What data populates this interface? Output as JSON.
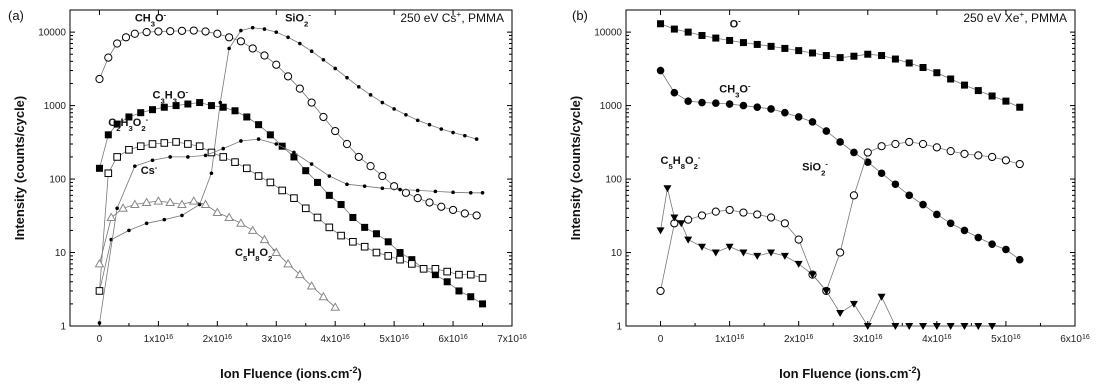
{
  "chart_data": [
    {
      "type": "scatter",
      "panel_label": "(a)",
      "condition_text": "250 eV Cs",
      "condition_sup": "+",
      "condition_suffix": ", PMMA",
      "xlabel": "Ion Fluence (ions.cm",
      "xlabel_sup": "-2",
      "xlabel_end": ")",
      "ylabel": "Intensity (counts/cycle)",
      "x_scale_exp": 16,
      "xlim": [
        -0.5,
        7
      ],
      "ylim": [
        1,
        20000
      ],
      "y_log": true,
      "x_ticks": [
        0,
        1,
        2,
        3,
        4,
        5,
        6,
        7
      ],
      "x_tick_labels": [
        "0",
        "1x10",
        "2x10",
        "3x10",
        "4x10",
        "5x10",
        "6x10",
        "7x10"
      ],
      "x_tick_sup": [
        "",
        "16",
        "16",
        "16",
        "16",
        "16",
        "16",
        "16"
      ],
      "y_ticks": [
        1,
        10,
        100,
        1000,
        10000
      ],
      "y_tick_labels": [
        "1",
        "10",
        "100",
        "1000",
        "10000"
      ],
      "series": [
        {
          "name": "CH3O-",
          "label_parts": [
            [
              "CH",
              ""
            ],
            [
              "3",
              "sub"
            ],
            [
              "O",
              ""
            ],
            [
              "-",
              "sup"
            ]
          ],
          "label_at": [
            0.6,
            14000
          ],
          "marker": "circle-open",
          "connect": true,
          "x": [
            0.0,
            0.15,
            0.3,
            0.45,
            0.6,
            0.8,
            1.0,
            1.2,
            1.4,
            1.6,
            1.8,
            2.0,
            2.2,
            2.4,
            2.6,
            2.8,
            3.0,
            3.2,
            3.4,
            3.6,
            3.8,
            4.0,
            4.2,
            4.4,
            4.6,
            4.8,
            5.0,
            5.2,
            5.4,
            5.6,
            5.8,
            6.0,
            6.2,
            6.4
          ],
          "y": [
            2300,
            4500,
            7000,
            8500,
            9500,
            10000,
            10200,
            10300,
            10400,
            10500,
            10200,
            9500,
            8500,
            7500,
            6000,
            4800,
            3600,
            2500,
            1700,
            1100,
            700,
            450,
            300,
            200,
            150,
            110,
            80,
            65,
            55,
            48,
            42,
            38,
            34,
            32
          ]
        },
        {
          "name": "SiO2-",
          "label_parts": [
            [
              "SiO",
              ""
            ],
            [
              "2",
              "sub"
            ],
            [
              "-",
              "sup"
            ]
          ],
          "label_at": [
            3.15,
            14000
          ],
          "marker": "small-dot",
          "connect": true,
          "x": [
            0.0,
            0.2,
            0.5,
            0.8,
            1.1,
            1.4,
            1.7,
            1.9,
            2.05,
            2.2,
            2.4,
            2.6,
            2.8,
            3.0,
            3.2,
            3.4,
            3.6,
            3.8,
            4.0,
            4.2,
            4.4,
            4.6,
            4.8,
            5.0,
            5.2,
            5.4,
            5.6,
            5.8,
            6.0,
            6.2,
            6.4
          ],
          "y": [
            3,
            15,
            20,
            25,
            28,
            32,
            45,
            120,
            1100,
            6000,
            10500,
            11500,
            11000,
            10000,
            8500,
            7000,
            5500,
            4200,
            3200,
            2400,
            1800,
            1400,
            1100,
            900,
            750,
            630,
            550,
            480,
            430,
            390,
            350
          ]
        },
        {
          "name": "C3H3O-",
          "label_parts": [
            [
              "C",
              ""
            ],
            [
              "3",
              "sub"
            ],
            [
              "H",
              ""
            ],
            [
              "3",
              "sub"
            ],
            [
              "O",
              ""
            ],
            [
              "-",
              "sup"
            ]
          ],
          "label_at": [
            0.9,
            1250
          ],
          "marker": "square-filled",
          "connect": true,
          "x": [
            0.0,
            0.15,
            0.3,
            0.5,
            0.7,
            0.9,
            1.1,
            1.3,
            1.5,
            1.7,
            1.9,
            2.1,
            2.3,
            2.5,
            2.7,
            2.9,
            3.1,
            3.3,
            3.5,
            3.7,
            3.9,
            4.1,
            4.3,
            4.5,
            4.7,
            4.9,
            5.1,
            5.3,
            5.5,
            5.7,
            5.9,
            6.1,
            6.3,
            6.5
          ],
          "y": [
            140,
            400,
            560,
            700,
            800,
            880,
            950,
            1000,
            1050,
            1100,
            1000,
            950,
            850,
            700,
            550,
            400,
            280,
            200,
            130,
            90,
            60,
            45,
            30,
            22,
            18,
            14,
            10,
            8,
            6,
            5,
            4,
            3,
            2.5,
            2
          ]
        },
        {
          "name": "C2H3O2-",
          "label_parts": [
            [
              "C",
              ""
            ],
            [
              "2",
              "sub"
            ],
            [
              "H",
              ""
            ],
            [
              "3",
              "sub"
            ],
            [
              "O",
              ""
            ],
            [
              "2",
              "sub"
            ],
            [
              "-",
              "sup"
            ]
          ],
          "label_at": [
            0.15,
            530
          ],
          "marker": "square-open",
          "connect": true,
          "x": [
            0.0,
            0.15,
            0.3,
            0.5,
            0.7,
            0.9,
            1.1,
            1.3,
            1.5,
            1.7,
            1.9,
            2.1,
            2.3,
            2.5,
            2.7,
            2.9,
            3.1,
            3.3,
            3.5,
            3.7,
            3.9,
            4.1,
            4.3,
            4.5,
            4.7,
            4.9,
            5.1,
            5.3,
            5.5,
            5.7,
            5.9,
            6.1,
            6.3,
            6.5
          ],
          "y": [
            3,
            120,
            200,
            250,
            280,
            300,
            310,
            320,
            300,
            280,
            230,
            200,
            170,
            140,
            110,
            90,
            70,
            55,
            40,
            30,
            22,
            17,
            14,
            12,
            10,
            9,
            8,
            7,
            6,
            6,
            5.5,
            5,
            5,
            4.5
          ]
        },
        {
          "name": "Cs-",
          "label_parts": [
            [
              "Cs",
              ""
            ],
            [
              "-",
              "sup"
            ]
          ],
          "label_at": [
            0.7,
            118
          ],
          "marker": "small-dot",
          "connect": true,
          "x": [
            0.0,
            0.3,
            0.6,
            0.9,
            1.2,
            1.5,
            1.8,
            2.1,
            2.4,
            2.7,
            3.0,
            3.3,
            3.6,
            3.9,
            4.2,
            4.5,
            4.8,
            5.1,
            5.4,
            5.7,
            6.0,
            6.3,
            6.5
          ],
          "y": [
            1.1,
            40,
            150,
            180,
            200,
            200,
            210,
            260,
            330,
            350,
            300,
            230,
            160,
            110,
            85,
            80,
            75,
            72,
            70,
            68,
            66,
            65,
            65
          ]
        },
        {
          "name": "C5H8O2-",
          "label_parts": [
            [
              "C",
              ""
            ],
            [
              "5",
              "sub"
            ],
            [
              "H",
              ""
            ],
            [
              "8",
              "sub"
            ],
            [
              "O",
              ""
            ],
            [
              "2",
              "sub"
            ],
            [
              "-",
              "sup"
            ]
          ],
          "label_at": [
            2.3,
            9
          ],
          "marker": "triangle-open",
          "connect": true,
          "x": [
            0.0,
            0.2,
            0.4,
            0.6,
            0.8,
            1.0,
            1.2,
            1.4,
            1.6,
            1.8,
            2.0,
            2.2,
            2.4,
            2.6,
            2.8,
            3.0,
            3.2,
            3.4,
            3.6,
            3.8,
            4.0
          ],
          "y": [
            7,
            30,
            40,
            45,
            48,
            50,
            48,
            45,
            50,
            45,
            35,
            30,
            25,
            20,
            15,
            10,
            7,
            5,
            3.5,
            2.5,
            1.8
          ]
        }
      ]
    },
    {
      "type": "scatter",
      "panel_label": "(b)",
      "condition_text": "250 eV Xe",
      "condition_sup": "+",
      "condition_suffix": ", PMMA",
      "xlabel": "Ion Fluence (ions.cm",
      "xlabel_sup": "-2",
      "xlabel_end": ")",
      "ylabel": "Intensity (counts/cycle)",
      "x_scale_exp": 16,
      "xlim": [
        -0.5,
        6
      ],
      "ylim": [
        1,
        20000
      ],
      "y_log": true,
      "x_ticks": [
        0,
        1,
        2,
        3,
        4,
        5,
        6
      ],
      "x_tick_labels": [
        "0",
        "1x10",
        "2x10",
        "3x10",
        "4x10",
        "5x10",
        "6x10"
      ],
      "x_tick_sup": [
        "",
        "16",
        "16",
        "16",
        "16",
        "16",
        "16"
      ],
      "y_ticks": [
        1,
        10,
        100,
        1000,
        10000
      ],
      "y_tick_labels": [
        "1",
        "10",
        "100",
        "1000",
        "10000"
      ],
      "series": [
        {
          "name": "O-",
          "label_parts": [
            [
              "O",
              ""
            ],
            [
              "-",
              "sup"
            ]
          ],
          "label_at": [
            1.0,
            11500
          ],
          "marker": "square-filled",
          "connect": true,
          "x": [
            0.0,
            0.2,
            0.4,
            0.6,
            0.8,
            1.0,
            1.2,
            1.4,
            1.6,
            1.8,
            2.0,
            2.2,
            2.4,
            2.6,
            2.8,
            3.0,
            3.2,
            3.4,
            3.6,
            3.8,
            4.0,
            4.2,
            4.4,
            4.6,
            4.8,
            5.0,
            5.2
          ],
          "y": [
            13000,
            11000,
            10000,
            9000,
            8300,
            7700,
            7200,
            6800,
            6400,
            6000,
            5600,
            5200,
            4800,
            4500,
            4700,
            5000,
            4800,
            4300,
            3800,
            3300,
            2800,
            2300,
            1900,
            1600,
            1350,
            1150,
            950
          ]
        },
        {
          "name": "CH3O-",
          "label_parts": [
            [
              "CH",
              ""
            ],
            [
              "3",
              "sub"
            ],
            [
              "O",
              ""
            ],
            [
              "-",
              "sup"
            ]
          ],
          "label_at": [
            0.85,
            1500
          ],
          "marker": "circle-filled",
          "connect": true,
          "x": [
            0.0,
            0.2,
            0.4,
            0.6,
            0.8,
            1.0,
            1.2,
            1.4,
            1.6,
            1.8,
            2.0,
            2.2,
            2.4,
            2.6,
            2.8,
            3.0,
            3.2,
            3.4,
            3.6,
            3.8,
            4.0,
            4.2,
            4.4,
            4.6,
            4.8,
            5.0,
            5.2
          ],
          "y": [
            3000,
            1500,
            1150,
            1100,
            1080,
            1050,
            1000,
            950,
            900,
            800,
            700,
            600,
            450,
            320,
            230,
            170,
            120,
            85,
            60,
            45,
            33,
            25,
            20,
            16,
            13,
            11,
            8
          ]
        },
        {
          "name": "SiO2-",
          "label_parts": [
            [
              "SiO",
              ""
            ],
            [
              "2",
              "sub"
            ],
            [
              "-",
              "sup"
            ]
          ],
          "label_at": [
            2.05,
            130
          ],
          "marker": "circle-open",
          "connect": true,
          "x": [
            0.0,
            0.2,
            0.4,
            0.6,
            0.8,
            1.0,
            1.2,
            1.4,
            1.6,
            1.8,
            2.0,
            2.2,
            2.4,
            2.6,
            2.8,
            3.0,
            3.2,
            3.4,
            3.6,
            3.8,
            4.0,
            4.2,
            4.4,
            4.6,
            4.8,
            5.0,
            5.2
          ],
          "y": [
            3,
            25,
            28,
            32,
            36,
            38,
            35,
            33,
            30,
            25,
            15,
            5,
            3,
            10,
            60,
            230,
            280,
            300,
            320,
            300,
            270,
            240,
            220,
            210,
            200,
            180,
            160
          ]
        },
        {
          "name": "C5H8O2-",
          "label_parts": [
            [
              "C",
              ""
            ],
            [
              "5",
              "sub"
            ],
            [
              "H",
              ""
            ],
            [
              "8",
              "sub"
            ],
            [
              "O",
              ""
            ],
            [
              "2",
              "sub"
            ],
            [
              "-",
              "sup"
            ]
          ],
          "label_at": [
            0.0,
            160
          ],
          "marker": "triangle-filled-down",
          "connect": true,
          "x": [
            0.0,
            0.1,
            0.2,
            0.3,
            0.4,
            0.6,
            0.8,
            1.0,
            1.2,
            1.4,
            1.6,
            1.8,
            2.0,
            2.2,
            2.4,
            2.6,
            2.8,
            3.0,
            3.2,
            3.4,
            3.6,
            3.8,
            4.0,
            4.2,
            4.4,
            4.6,
            4.8
          ],
          "y": [
            20,
            75,
            30,
            25,
            15,
            12,
            10,
            12,
            10,
            9,
            10,
            9,
            7,
            5,
            3,
            1.5,
            2,
            1,
            2.5,
            1,
            1,
            1,
            1,
            1,
            1,
            1,
            1
          ]
        }
      ]
    }
  ]
}
